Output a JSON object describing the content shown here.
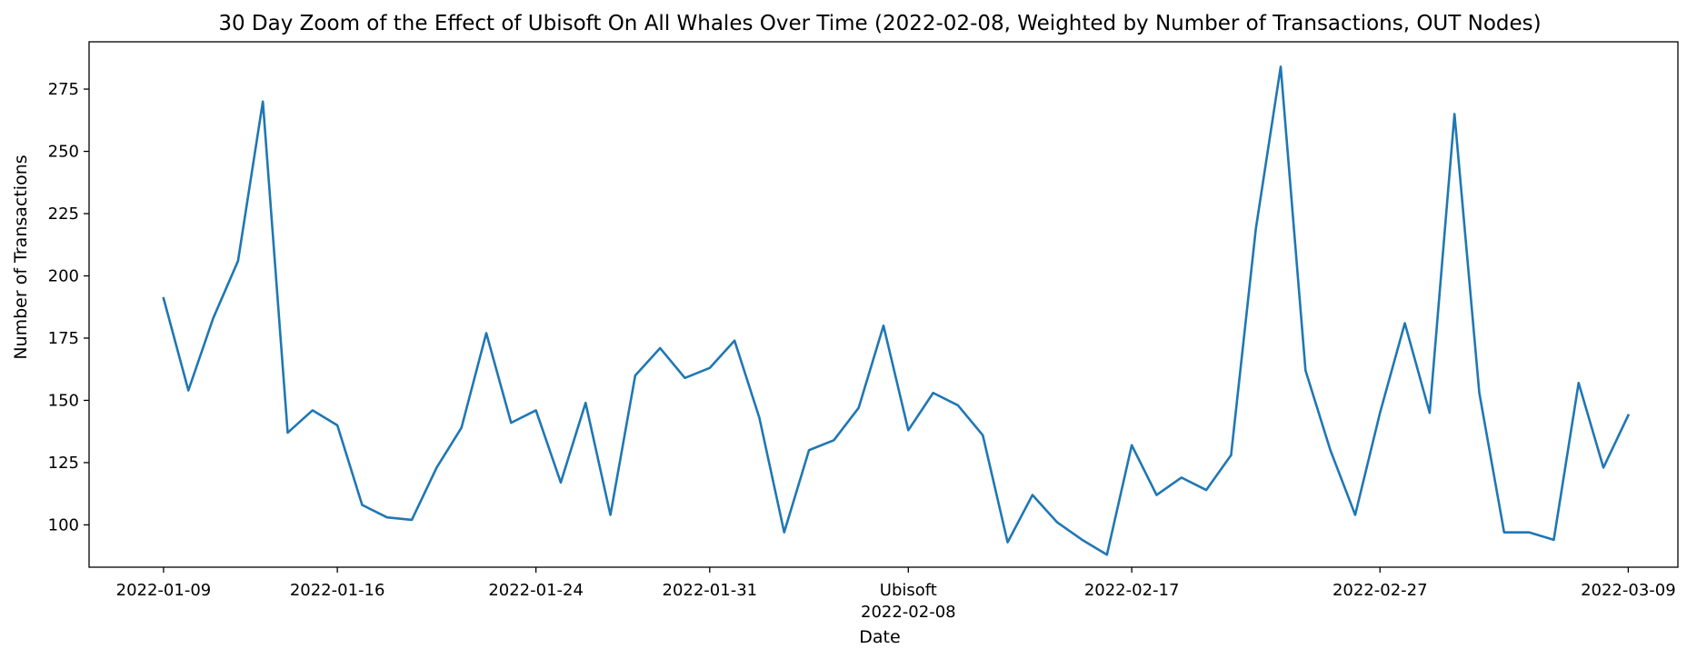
{
  "chart_data": {
    "type": "line",
    "title": "30 Day Zoom of the Effect of Ubisoft On All Whales Over Time (2022-02-08, Weighted by Number of Transactions, OUT Nodes)",
    "xlabel": "Date",
    "ylabel": "Number of Transactions",
    "ylim": [
      83,
      294
    ],
    "xlim": [
      "2022-01-06",
      "2022-03-11"
    ],
    "y_ticks": [
      100,
      125,
      150,
      175,
      200,
      225,
      250,
      275
    ],
    "x_ticks": [
      {
        "date": "2022-01-09",
        "label": "2022-01-09"
      },
      {
        "date": "2022-01-16",
        "label": "2022-01-16"
      },
      {
        "date": "2022-01-24",
        "label": "2022-01-24"
      },
      {
        "date": "2022-01-31",
        "label": "2022-01-31"
      },
      {
        "date": "2022-02-08",
        "label": "Ubisoft",
        "label2": "2022-02-08"
      },
      {
        "date": "2022-02-17",
        "label": "2022-02-17"
      },
      {
        "date": "2022-02-27",
        "label": "2022-02-27"
      },
      {
        "date": "2022-03-09",
        "label": "2022-03-09"
      }
    ],
    "grid": false,
    "line_color": "#1f77b4",
    "series": [
      {
        "x": [
          "2022-01-09",
          "2022-01-10",
          "2022-01-11",
          "2022-01-12",
          "2022-01-13",
          "2022-01-14",
          "2022-01-15",
          "2022-01-16",
          "2022-01-17",
          "2022-01-18",
          "2022-01-19",
          "2022-01-20",
          "2022-01-21",
          "2022-01-22",
          "2022-01-23",
          "2022-01-24",
          "2022-01-25",
          "2022-01-26",
          "2022-01-27",
          "2022-01-28",
          "2022-01-29",
          "2022-01-30",
          "2022-01-31",
          "2022-02-01",
          "2022-02-02",
          "2022-02-03",
          "2022-02-04",
          "2022-02-05",
          "2022-02-06",
          "2022-02-07",
          "2022-02-08",
          "2022-02-09",
          "2022-02-10",
          "2022-02-11",
          "2022-02-12",
          "2022-02-13",
          "2022-02-14",
          "2022-02-15",
          "2022-02-16",
          "2022-02-17",
          "2022-02-18",
          "2022-02-19",
          "2022-02-20",
          "2022-02-21",
          "2022-02-22",
          "2022-02-23",
          "2022-02-24",
          "2022-02-25",
          "2022-02-26",
          "2022-02-27",
          "2022-02-28",
          "2022-03-01",
          "2022-03-02",
          "2022-03-03",
          "2022-03-04",
          "2022-03-05",
          "2022-03-06",
          "2022-03-07",
          "2022-03-08",
          "2022-03-09"
        ],
        "values": [
          191,
          154,
          183,
          206,
          270,
          137,
          146,
          140,
          108,
          103,
          102,
          123,
          139,
          177,
          141,
          146,
          117,
          149,
          104,
          160,
          171,
          159,
          163,
          174,
          143,
          97,
          130,
          134,
          147,
          180,
          138,
          153,
          148,
          136,
          93,
          112,
          101,
          94,
          88,
          132,
          112,
          119,
          114,
          128,
          219,
          284,
          162,
          130,
          104,
          145,
          181,
          145,
          265,
          153,
          97,
          97,
          94,
          157,
          123,
          144
        ]
      }
    ]
  }
}
